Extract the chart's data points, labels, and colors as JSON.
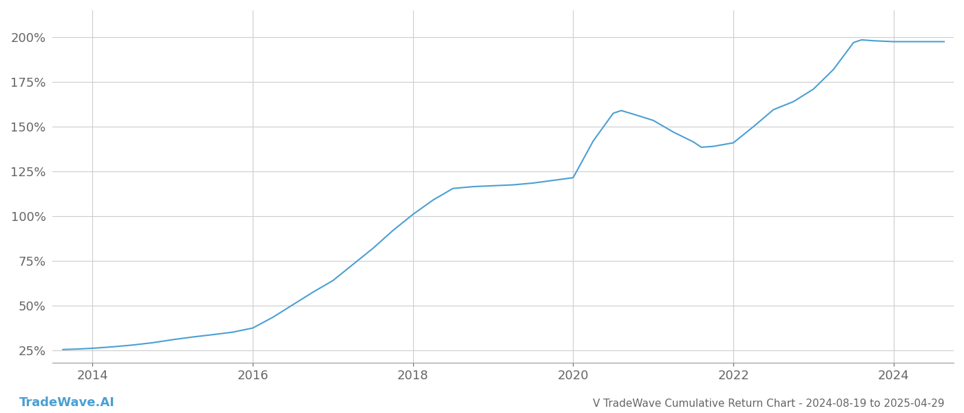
{
  "title": "V TradeWave Cumulative Return Chart - 2024-08-19 to 2025-04-29",
  "watermark": "TradeWave.AI",
  "line_color": "#4a9fd4",
  "background_color": "#ffffff",
  "grid_color": "#cccccc",
  "x_years": [
    2014,
    2016,
    2018,
    2020,
    2022,
    2024
  ],
  "xlim": [
    2013.5,
    2024.75
  ],
  "ylim": [
    0.18,
    2.15
  ],
  "yticks": [
    0.25,
    0.5,
    0.75,
    1.0,
    1.25,
    1.5,
    1.75,
    2.0
  ],
  "data_x": [
    2013.63,
    2013.83,
    2014.0,
    2014.25,
    2014.5,
    2014.75,
    2015.0,
    2015.25,
    2015.5,
    2015.75,
    2016.0,
    2016.25,
    2016.5,
    2016.75,
    2017.0,
    2017.25,
    2017.5,
    2017.75,
    2018.0,
    2018.25,
    2018.5,
    2018.75,
    2019.0,
    2019.25,
    2019.5,
    2019.75,
    2020.0,
    2020.25,
    2020.5,
    2020.6,
    2020.75,
    2021.0,
    2021.25,
    2021.5,
    2021.6,
    2021.75,
    2022.0,
    2022.25,
    2022.5,
    2022.75,
    2023.0,
    2023.25,
    2023.5,
    2023.6,
    2023.75,
    2024.0,
    2024.25,
    2024.5,
    2024.63
  ],
  "data_y": [
    0.255,
    0.258,
    0.262,
    0.27,
    0.28,
    0.293,
    0.31,
    0.325,
    0.338,
    0.352,
    0.375,
    0.435,
    0.505,
    0.575,
    0.64,
    0.73,
    0.82,
    0.92,
    1.01,
    1.09,
    1.155,
    1.165,
    1.17,
    1.175,
    1.185,
    1.2,
    1.215,
    1.42,
    1.575,
    1.59,
    1.57,
    1.535,
    1.47,
    1.415,
    1.385,
    1.39,
    1.41,
    1.5,
    1.595,
    1.64,
    1.71,
    1.82,
    1.97,
    1.985,
    1.98,
    1.975,
    1.975,
    1.975,
    1.975
  ],
  "axis_label_color": "#666666",
  "title_color": "#666666",
  "watermark_color": "#4a9fd4",
  "line_width": 1.5,
  "title_fontsize": 11,
  "watermark_fontsize": 13,
  "tick_fontsize": 13
}
